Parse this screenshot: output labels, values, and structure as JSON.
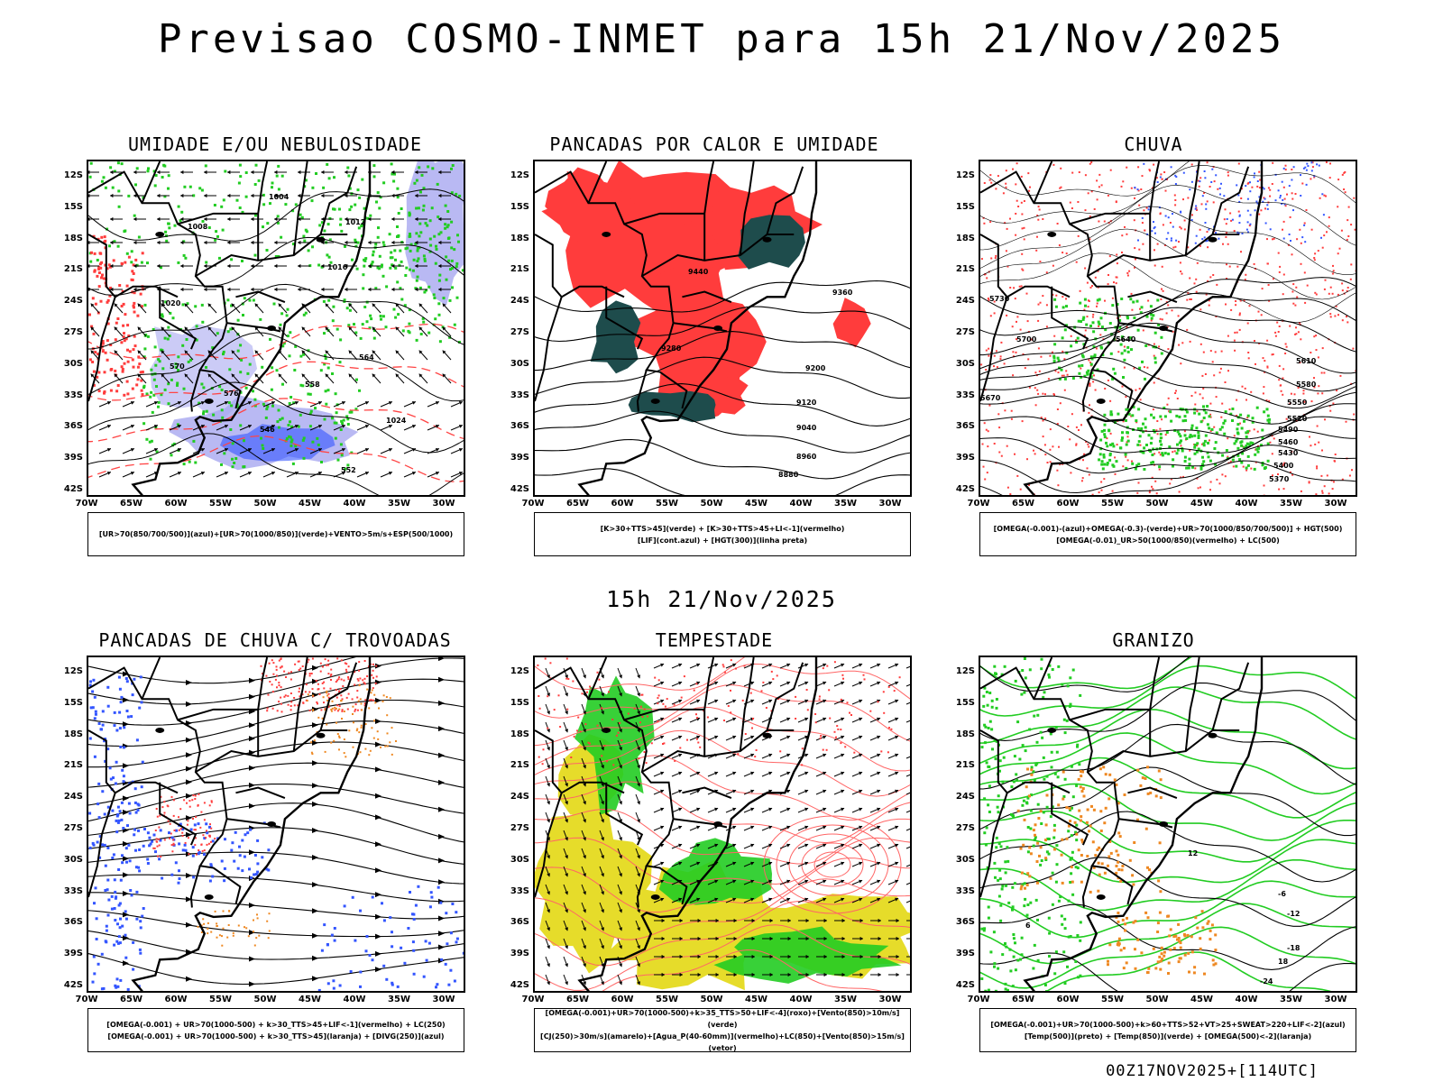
{
  "title": "Previsao COSMO-INMET  para 15h 21/Nov/2025",
  "mid_title": "15h 21/Nov/2025",
  "footer": "00Z17NOV2025+[114UTC]",
  "lat_ticks": [
    "12S",
    "15S",
    "18S",
    "21S",
    "24S",
    "27S",
    "30S",
    "33S",
    "36S",
    "39S",
    "42S"
  ],
  "lon_ticks": [
    "70W",
    "65W",
    "60W",
    "55W",
    "50W",
    "45W",
    "40W",
    "35W",
    "30W"
  ],
  "panels": [
    {
      "id": "umidade",
      "title": "UMIDADE E/OU NEBULOSIDADE",
      "legend": [
        "[UR>70(850/700/500)](azul)+[UR>70(1000/850)](verde)+VENTO>5m/s+ESP(500/1000)"
      ],
      "contour_labels": [
        "1004",
        "1008",
        "1012",
        "1016",
        "1020",
        "1024",
        "546",
        "552",
        "558",
        "564",
        "570",
        "576"
      ]
    },
    {
      "id": "pancadas-calor",
      "title": "PANCADAS POR CALOR E UMIDADE",
      "legend": [
        "[K>30+TTS>45](verde) + [K>30+TTS>45+LI<-1](vermelho)",
        "[LIF](cont.azul) + [HGT(300)](linha preta)"
      ],
      "contour_labels": [
        "9440",
        "9360",
        "9280",
        "9200",
        "9120",
        "9040",
        "8960",
        "8880"
      ]
    },
    {
      "id": "chuva",
      "title": "CHUVA",
      "legend": [
        "[OMEGA(-0.001)-(azul)+OMEGA(-0.3)-(verde)+UR>70(1000/850/700/500)] + HGT(500)",
        "[OMEGA(-0.01)_UR>50(1000/850)(vermelho) + LC(500)"
      ],
      "contour_labels": [
        "5730",
        "5700",
        "5670",
        "5640",
        "5610",
        "5580",
        "5550",
        "5520",
        "5490",
        "5460",
        "5430",
        "5400",
        "5370"
      ]
    },
    {
      "id": "pancadas-trovoadas",
      "title": "PANCADAS DE CHUVA C/ TROVOADAS",
      "legend": [
        "[OMEGA(-0.001) + UR>70(1000-500) + k>30_TTS>45+LIF<-1](vermelho) + LC(250)",
        "[OMEGA(-0.001) + UR>70(1000-500) + k>30_TTS>45](laranja) + [DIVG(250)](azul)"
      ],
      "contour_labels": []
    },
    {
      "id": "tempestade",
      "title": "TEMPESTADE",
      "legend": [
        "[OMEGA(-0.001)+UR>70(1000-500)+k>35_TTS>50+LIF<-4](roxo)+[Vento(850)>10m/s](verde)",
        "[CJ(250)>30m/s](amarelo)+[Agua_P(40-60mm)](vermelho)+LC(850)+[Vento(850)>15m/s](vetor)"
      ],
      "contour_labels": []
    },
    {
      "id": "granizo",
      "title": "GRANIZO",
      "legend": [
        "[OMEGA(-0.001)+UR>70(1000-500)+k>60+TTS>52+VT>25+SWEAT>220+LIF<-2](azul)",
        "[Temp(500)](preto) + [Temp(850)](verde) + [OMEGA(500)<-2](laranja)"
      ],
      "contour_labels": [
        "-24",
        "-18",
        "-12",
        "-6",
        "6",
        "12",
        "18"
      ]
    }
  ],
  "colors": {
    "green": "#22cc22",
    "red": "#ff3c3c",
    "blue": "#3355ff",
    "lavender": "#a8a8f0",
    "dark_teal": "#1e4c4c",
    "yellow": "#e6dc2a",
    "orange": "#ee8822",
    "salmon": "#ff6666"
  }
}
